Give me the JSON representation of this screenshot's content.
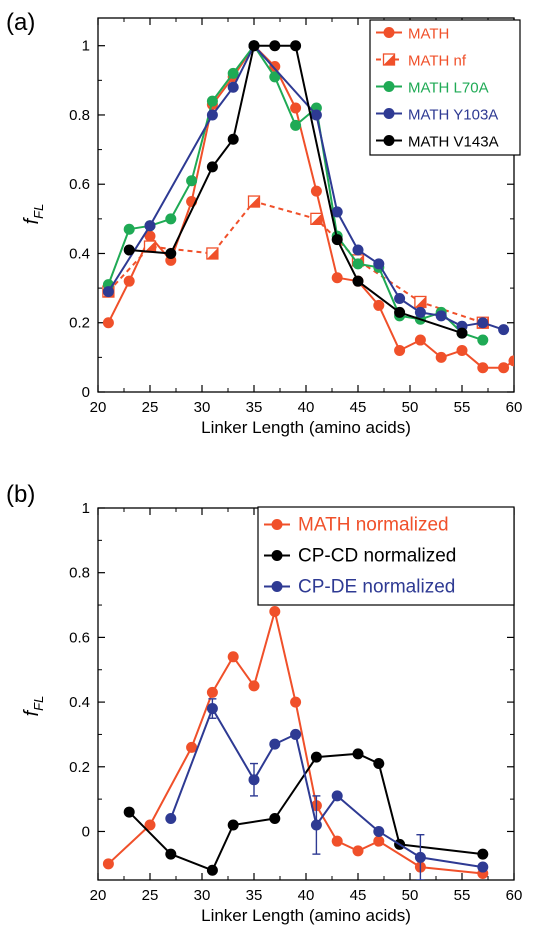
{
  "chart_data": [
    {
      "type": "line",
      "panel_label": "(a)",
      "xlabel": "Linker Length (amino acids)",
      "ylabel_main": "f",
      "ylabel_sub": "FL",
      "xlim": [
        20,
        60
      ],
      "ylim": [
        0,
        1.08
      ],
      "xticks": [
        20,
        25,
        30,
        35,
        40,
        45,
        50,
        55,
        60
      ],
      "yticks": [
        0,
        0.2,
        0.4,
        0.6,
        0.8,
        1
      ],
      "legend_position": "top-right",
      "series": [
        {
          "name": "MATH",
          "color": "#f0502a",
          "marker": "circle",
          "dashed": false,
          "x": [
            21,
            23,
            25,
            27,
            29,
            31,
            33,
            35,
            37,
            39,
            41,
            43,
            45,
            47,
            49,
            51,
            53,
            55,
            57,
            59,
            60
          ],
          "y": [
            0.2,
            0.32,
            0.45,
            0.38,
            0.55,
            0.83,
            0.91,
            1.0,
            0.94,
            0.82,
            0.58,
            0.33,
            0.32,
            0.25,
            0.12,
            0.15,
            0.1,
            0.12,
            0.07,
            0.07,
            0.09
          ]
        },
        {
          "name": "MATH nf",
          "color": "#f0502a",
          "marker": "half-square",
          "dashed": true,
          "x": [
            21,
            25,
            31,
            35,
            41,
            45,
            51,
            57
          ],
          "y": [
            0.29,
            0.42,
            0.4,
            0.55,
            0.5,
            0.38,
            0.26,
            0.2
          ]
        },
        {
          "name": "MATH L70A",
          "color": "#1faa55",
          "marker": "circle",
          "dashed": false,
          "x": [
            21,
            23,
            25,
            27,
            29,
            31,
            33,
            35,
            37,
            39,
            41,
            43,
            45,
            47,
            49,
            51,
            53,
            55,
            57
          ],
          "y": [
            0.31,
            0.47,
            0.48,
            0.5,
            0.61,
            0.84,
            0.92,
            1.0,
            0.91,
            0.77,
            0.82,
            0.45,
            0.37,
            0.36,
            0.22,
            0.21,
            0.23,
            0.17,
            0.15
          ]
        },
        {
          "name": "MATH Y103A",
          "color": "#2e3a93",
          "marker": "circle",
          "dashed": false,
          "x": [
            21,
            25,
            31,
            33,
            35,
            41,
            43,
            45,
            47,
            49,
            51,
            53,
            55,
            57,
            59
          ],
          "y": [
            0.29,
            0.48,
            0.8,
            0.88,
            1.0,
            0.8,
            0.52,
            0.41,
            0.37,
            0.27,
            0.23,
            0.22,
            0.19,
            0.2,
            0.18
          ]
        },
        {
          "name": "MATH V143A",
          "color": "#000000",
          "marker": "circle",
          "dashed": false,
          "x": [
            23,
            27,
            31,
            33,
            35,
            37,
            39,
            43,
            45,
            49,
            55
          ],
          "y": [
            0.41,
            0.4,
            0.65,
            0.73,
            1.0,
            1.0,
            1.0,
            0.44,
            0.32,
            0.23,
            0.17
          ]
        }
      ]
    },
    {
      "type": "line",
      "panel_label": "(b)",
      "xlabel": "Linker Length (amino acids)",
      "ylabel_main": "f",
      "ylabel_sub": "FL",
      "xlim": [
        20,
        60
      ],
      "ylim": [
        -0.15,
        1.0
      ],
      "xticks": [
        20,
        25,
        30,
        35,
        40,
        45,
        50,
        55,
        60
      ],
      "yticks": [
        0,
        0.2,
        0.4,
        0.6,
        0.8,
        1
      ],
      "legend_position": "top-right",
      "series": [
        {
          "name": "MATH normalized",
          "color": "#f0502a",
          "marker": "circle",
          "dashed": false,
          "x": [
            21,
            25,
            29,
            31,
            33,
            35,
            37,
            39,
            41,
            43,
            45,
            47,
            51,
            57
          ],
          "y": [
            -0.1,
            0.02,
            0.26,
            0.43,
            0.54,
            0.45,
            0.68,
            0.4,
            0.08,
            -0.03,
            -0.06,
            -0.03,
            -0.11,
            -0.13
          ],
          "errors": []
        },
        {
          "name": "CP-CD normalized",
          "color": "#000000",
          "marker": "circle",
          "dashed": false,
          "x": [
            23,
            27,
            31,
            33,
            37,
            41,
            45,
            47,
            49,
            57
          ],
          "y": [
            0.06,
            -0.07,
            -0.12,
            0.02,
            0.04,
            0.23,
            0.24,
            0.21,
            -0.04,
            -0.07
          ],
          "errors": []
        },
        {
          "name": "CP-DE normalized",
          "color": "#2e3a93",
          "marker": "circle",
          "dashed": false,
          "x": [
            27,
            31,
            35,
            37,
            39,
            41,
            43,
            47,
            51,
            57
          ],
          "y": [
            0.04,
            0.38,
            0.16,
            0.27,
            0.3,
            0.02,
            0.11,
            0.0,
            -0.08,
            -0.11
          ],
          "errors": [
            0,
            0.03,
            0.05,
            0,
            0,
            0.09,
            0,
            0,
            0.07,
            0
          ]
        }
      ]
    }
  ]
}
